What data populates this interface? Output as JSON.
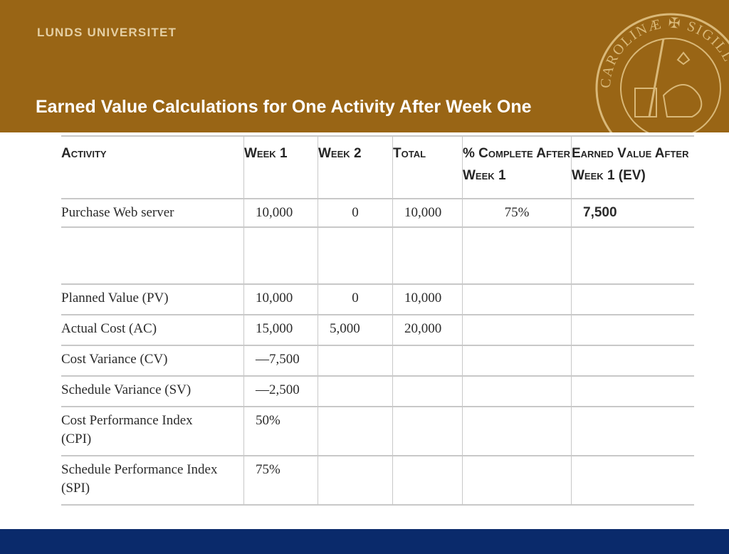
{
  "header": {
    "brand": "LUNDS UNIVERSITET",
    "title": "Earned Value Calculations for One Activity After Week One",
    "background_color": "#996515",
    "seal_icon": "university-seal-icon"
  },
  "footer": {
    "color": "#0a2a6b"
  },
  "table": {
    "columns": [
      "Activity",
      "Week 1",
      "Week 2",
      "Total",
      "% Complete After Week 1",
      "Earned Value After Week 1 (EV)"
    ],
    "rows": [
      {
        "activity": "Purchase Web server",
        "week1": "10,000",
        "week2": "0",
        "total": "10,000",
        "pct": "75%",
        "ev": "7,500"
      },
      {
        "activity": "",
        "week1": "",
        "week2": "",
        "total": "",
        "pct": "",
        "ev": ""
      },
      {
        "activity": "Planned Value (PV)",
        "week1": "10,000",
        "week2": "0",
        "total": "10,000",
        "pct": "",
        "ev": ""
      },
      {
        "activity": "Actual Cost (AC)",
        "week1": "15,000",
        "week2": "5,000",
        "total": "20,000",
        "pct": "",
        "ev": ""
      },
      {
        "activity": "Cost Variance (CV)",
        "week1": "—7,500",
        "week2": "",
        "total": "",
        "pct": "",
        "ev": ""
      },
      {
        "activity": "Schedule Variance (SV)",
        "week1": "—2,500",
        "week2": "",
        "total": "",
        "pct": "",
        "ev": ""
      },
      {
        "activity": "Cost Performance Index (CPI)",
        "week1": "50%",
        "week2": "",
        "total": "",
        "pct": "",
        "ev": ""
      },
      {
        "activity": "Schedule Performance Index (SPI)",
        "week1": "75%",
        "week2": "",
        "total": "",
        "pct": "",
        "ev": ""
      }
    ]
  }
}
